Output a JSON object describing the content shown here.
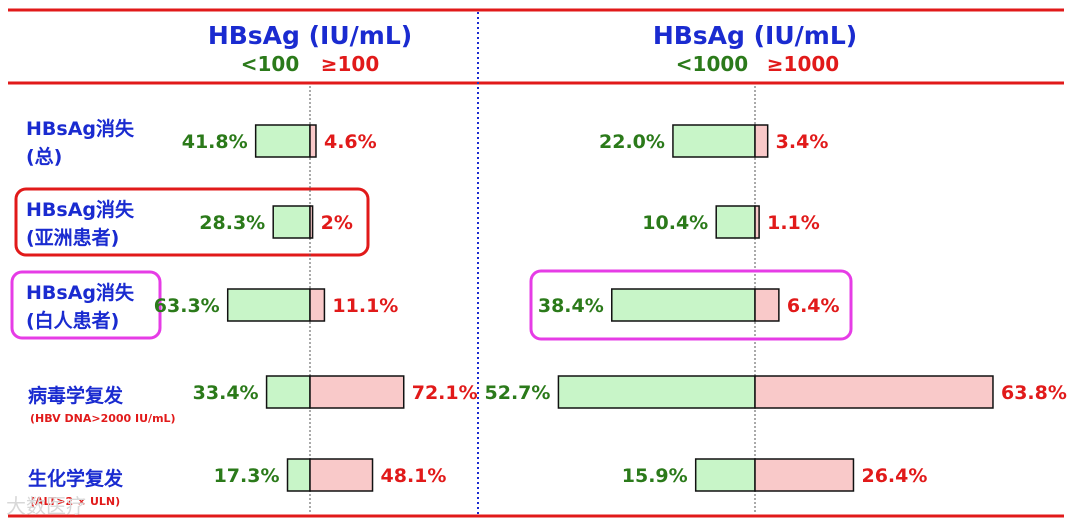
{
  "chart_data": {
    "type": "bar",
    "orientation": "diverging-horizontal",
    "colors": {
      "low": "#c8f5c8",
      "high": "#f9c9c9",
      "low_text": "#2b7a1a",
      "high_text": "#e11a1a",
      "title_text": "#1a2bd0",
      "rule": "#e11a1a",
      "divider": "#1a2bd0",
      "highlight_red": "#e11a1a",
      "highlight_magenta": "#e63ce6"
    },
    "rows": [
      {
        "label": "HBsAg消失",
        "label2": "(总)",
        "sub": ""
      },
      {
        "label": "HBsAg消失",
        "label2": "(亚洲患者)",
        "sub": "",
        "highlight": "red"
      },
      {
        "label": "HBsAg消失",
        "label2": "(白人患者)",
        "sub": "",
        "highlight": "magenta"
      },
      {
        "label": "病毒学复发",
        "label2": "",
        "sub": "(HBV DNA>2000 IU/mL)"
      },
      {
        "label": "生化学复发",
        "label2": "",
        "sub": "(ALT>2 × ULN)"
      }
    ],
    "panels": [
      {
        "title": "HBsAg (IU/mL)",
        "low_label": "<100",
        "high_label": "≥100",
        "series": [
          {
            "name": "<100",
            "values": [
              41.8,
              28.3,
              63.3,
              33.4,
              17.3
            ]
          },
          {
            "name": "≥100",
            "values": [
              4.6,
              2,
              11.1,
              72.1,
              48.1
            ]
          }
        ],
        "value_labels": {
          "low": [
            "41.8%",
            "28.3%",
            "63.3%",
            "33.4%",
            "17.3%"
          ],
          "high": [
            "4.6%",
            "2%",
            "11.1%",
            "72.1%",
            "48.1%"
          ]
        },
        "highlight_rows": []
      },
      {
        "title": "HBsAg (IU/mL)",
        "low_label": "<1000",
        "high_label": "≥1000",
        "series": [
          {
            "name": "<1000",
            "values": [
              22.0,
              10.4,
              38.4,
              52.7,
              15.9
            ]
          },
          {
            "name": "≥1000",
            "values": [
              3.4,
              1.1,
              6.4,
              63.8,
              26.4
            ]
          }
        ],
        "value_labels": {
          "low": [
            "22.0%",
            "10.4%",
            "38.4%",
            "52.7%",
            "15.9%"
          ],
          "high": [
            "3.4%",
            "1.1%",
            "6.4%",
            "63.8%",
            "26.4%"
          ]
        },
        "highlight_rows": [
          2
        ]
      }
    ]
  },
  "watermark": "大数医疗"
}
